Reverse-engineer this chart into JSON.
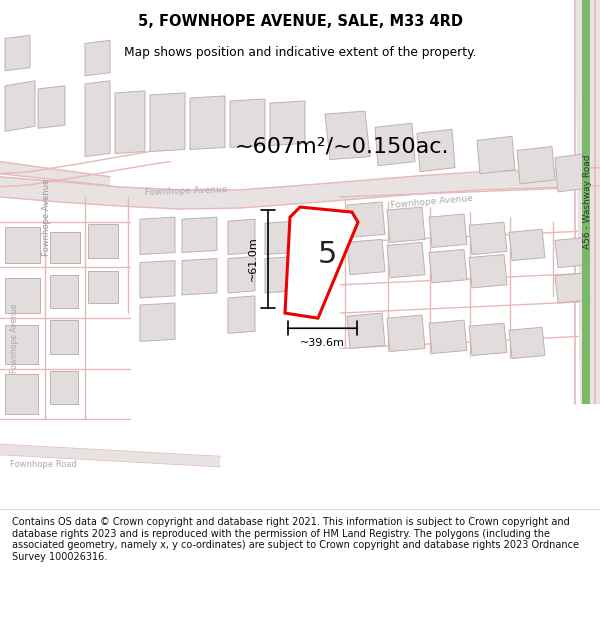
{
  "title": "5, FOWNHOPE AVENUE, SALE, M33 4RD",
  "subtitle": "Map shows position and indicative extent of the property.",
  "area_text": "~607m²/~0.150ac.",
  "property_number": "5",
  "dim_width": "~39.6m",
  "dim_height": "~61.0m",
  "footer_text": "Contains OS data © Crown copyright and database right 2021. This information is subject to Crown copyright and database rights 2023 and is reproduced with the permission of HM Land Registry. The polygons (including the associated geometry, namely x, y co-ordinates) are subject to Crown copyright and database rights 2023 Ordnance Survey 100026316.",
  "map_bg": "#f7f4f4",
  "road_line_color": "#e8b8b8",
  "road_fill_color": "#e8e0e0",
  "building_fill": "#e2dcdc",
  "building_edge": "#c0b0b0",
  "property_color": "#ee0000",
  "green_color": "#7ab86a",
  "dim_color": "#000000",
  "title_color": "#000000",
  "footer_bg": "#ffffff",
  "footer_color": "#111111"
}
